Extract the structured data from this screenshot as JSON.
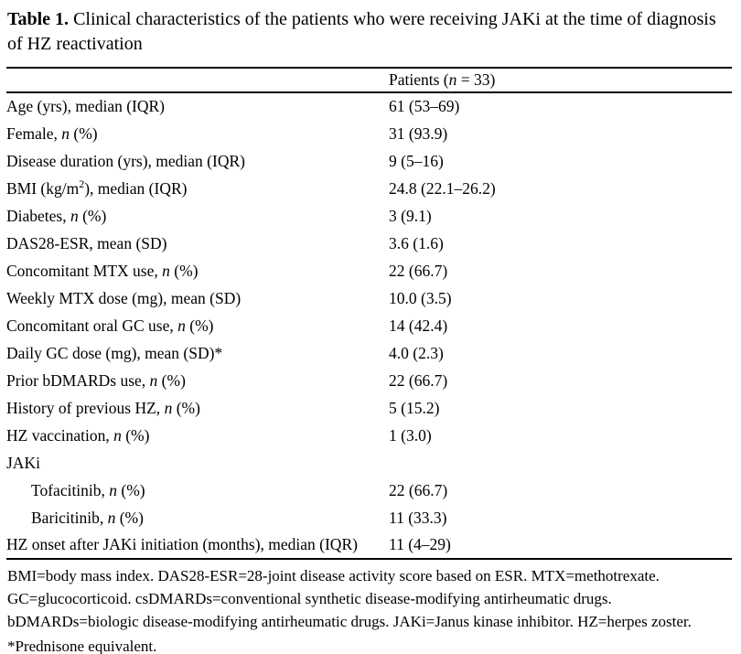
{
  "title": {
    "label": "Table 1.",
    "caption": "Clinical characteristics of the patients who were receiving JAKi at the time of diagnosis of HZ reactivation"
  },
  "table": {
    "header_col1": "",
    "header_col2": "Patients (n = 33)",
    "rows": [
      {
        "label": "Age (yrs), median (IQR)",
        "value": "61 (53–69)",
        "indent": false
      },
      {
        "label": "Female, n (%)",
        "value": "31 (93.9)",
        "indent": false
      },
      {
        "label": "Disease duration (yrs), median (IQR)",
        "value": "9 (5–16)",
        "indent": false
      },
      {
        "label": "BMI (kg/m2), median (IQR)",
        "value": "24.8 (22.1–26.2)",
        "indent": false
      },
      {
        "label": "Diabetes, n (%)",
        "value": "3 (9.1)",
        "indent": false
      },
      {
        "label": "DAS28-ESR, mean (SD)",
        "value": "3.6 (1.6)",
        "indent": false
      },
      {
        "label": "Concomitant MTX use, n (%)",
        "value": "22 (66.7)",
        "indent": false
      },
      {
        "label": "Weekly MTX dose (mg), mean (SD)",
        "value": "10.0 (3.5)",
        "indent": false
      },
      {
        "label": "Concomitant oral GC use, n (%)",
        "value": "14 (42.4)",
        "indent": false
      },
      {
        "label": "Daily GC dose (mg), mean (SD)*",
        "value": "4.0 (2.3)",
        "indent": false
      },
      {
        "label": "Prior bDMARDs use, n (%)",
        "value": "22 (66.7)",
        "indent": false
      },
      {
        "label": "History of previous HZ, n (%)",
        "value": "5 (15.2)",
        "indent": false
      },
      {
        "label": "HZ vaccination, n (%)",
        "value": "1 (3.0)",
        "indent": false
      },
      {
        "label": "JAKi",
        "value": "",
        "indent": false
      },
      {
        "label": "Tofacitinib, n (%)",
        "value": "22 (66.7)",
        "indent": true
      },
      {
        "label": "Baricitinib, n (%)",
        "value": "11 (33.3)",
        "indent": true
      },
      {
        "label": "HZ onset after JAKi initiation (months), median (IQR)",
        "value": "11 (4–29)",
        "indent": false
      }
    ]
  },
  "footnote": {
    "lines": [
      "BMI=body mass index. DAS28-ESR=28-joint disease activity score based on ESR. MTX=methotrexate.",
      "GC=glucocorticoid. csDMARDs=conventional synthetic disease-modifying antirheumatic drugs.",
      "bDMARDs=biologic disease-modifying antirheumatic drugs. JAKi=Janus kinase inhibitor. HZ=herpes zoster."
    ],
    "asterisk": "*Prednisone equivalent."
  },
  "colors": {
    "text": "#000000",
    "background": "#ffffff",
    "rule": "#000000"
  }
}
